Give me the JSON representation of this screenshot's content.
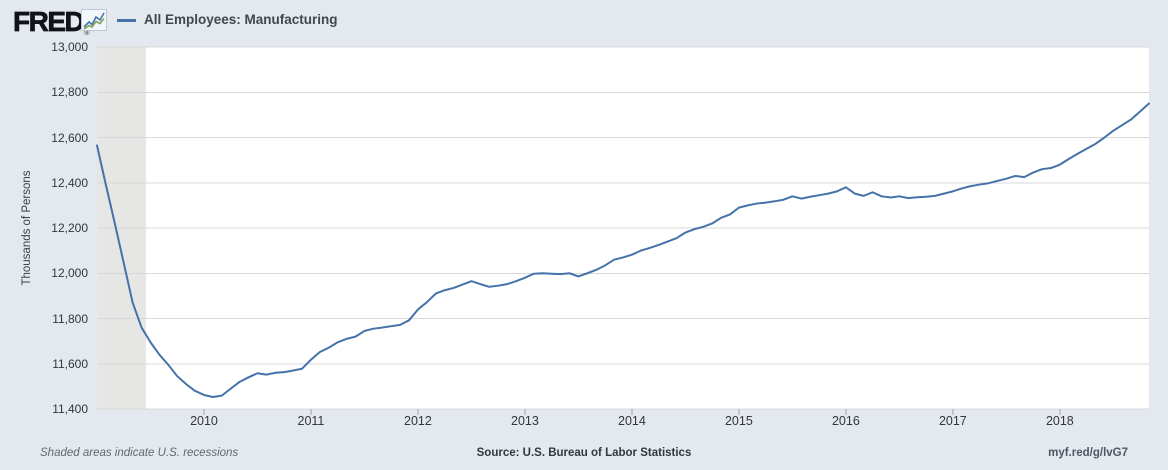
{
  "header": {
    "logo_text": "FRED",
    "registered_mark": "®",
    "legend_label": "All Employees: Manufacturing"
  },
  "chart_data": {
    "type": "line",
    "title": "All Employees: Manufacturing",
    "ylabel": "Thousands of Persons",
    "xlabel": "",
    "series_name": "All Employees: Manufacturing",
    "series_color": "#4572a7",
    "background_color": "#e3e9ef",
    "recession_band_color": "#e6e6e4",
    "grid_color": "#d8d8d8",
    "grid": "horizontal-only",
    "legend_position": "top-left",
    "frequency": "monthly",
    "x_start": 2009.0,
    "x_end": 2018.8333,
    "start_period": "2009-01",
    "end_period": "2018-11",
    "ylim": [
      11400,
      13000
    ],
    "y_ticks": [
      11400,
      11600,
      11800,
      12000,
      12200,
      12400,
      12600,
      12800,
      13000
    ],
    "x_ticks": [
      2010,
      2011,
      2012,
      2013,
      2014,
      2015,
      2016,
      2017,
      2018
    ],
    "recession_bands": [
      {
        "start": 2009.0,
        "end": 2009.4583
      }
    ],
    "values": [
      12565,
      12390,
      12220,
      12045,
      11870,
      11760,
      11695,
      11640,
      11595,
      11545,
      11510,
      11480,
      11462,
      11453,
      11459,
      11490,
      11520,
      11540,
      11558,
      11552,
      11560,
      11563,
      11570,
      11578,
      11618,
      11652,
      11671,
      11695,
      11710,
      11720,
      11745,
      11755,
      11760,
      11766,
      11772,
      11792,
      11840,
      11872,
      11910,
      11925,
      11935,
      11950,
      11965,
      11952,
      11940,
      11945,
      11952,
      11965,
      11980,
      11998,
      12000,
      11998,
      11996,
      12000,
      11986,
      12000,
      12015,
      12035,
      12060,
      12070,
      12082,
      12100,
      12112,
      12125,
      12140,
      12155,
      12180,
      12195,
      12205,
      12220,
      12245,
      12260,
      12290,
      12300,
      12308,
      12312,
      12318,
      12325,
      12340,
      12330,
      12338,
      12345,
      12352,
      12362,
      12380,
      12352,
      12342,
      12358,
      12340,
      12335,
      12340,
      12332,
      12336,
      12338,
      12342,
      12352,
      12362,
      12375,
      12385,
      12392,
      12398,
      12408,
      12418,
      12430,
      12425,
      12445,
      12460,
      12465,
      12480,
      12505,
      12528,
      12550,
      12572,
      12600,
      12630,
      12655,
      12680,
      12715,
      12750
    ]
  },
  "footer": {
    "recession_note": "Shaded areas indicate U.S. recessions",
    "source": "Source: U.S. Bureau of Labor Statistics",
    "short_url": "myf.red/g/lvG7"
  }
}
